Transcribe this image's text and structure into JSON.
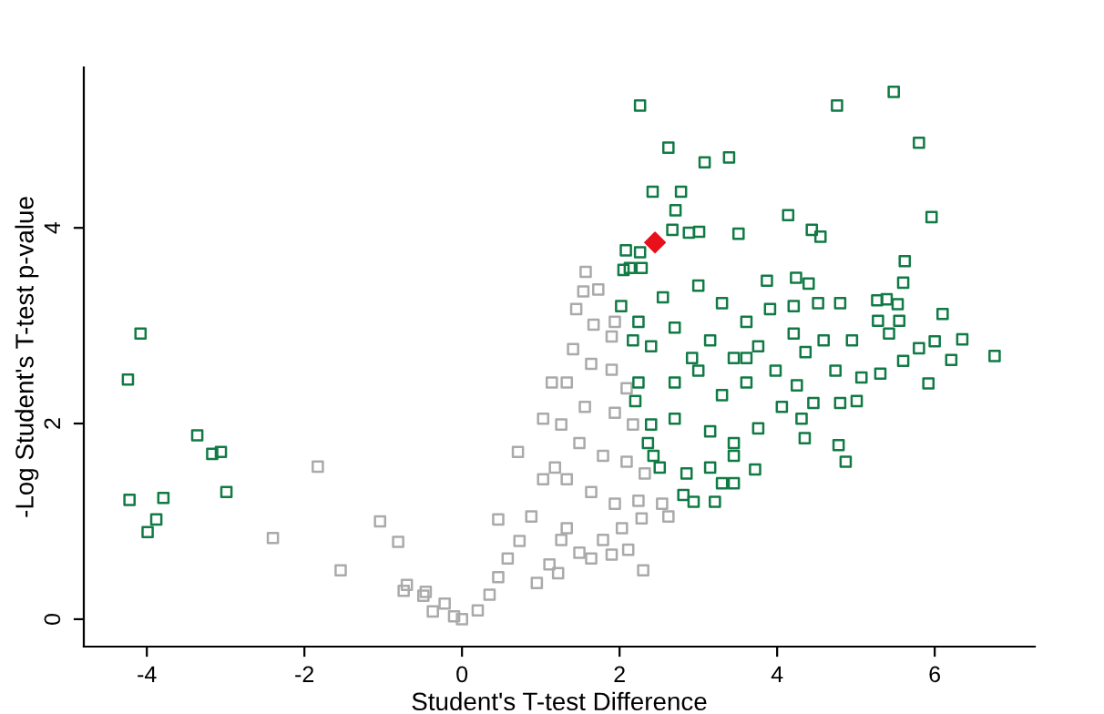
{
  "chart_data": {
    "type": "scatter",
    "xlabel": "Student's T-test Difference",
    "ylabel": "-Log Student's T-test p-value",
    "xlim": [
      -4.8,
      7.27
    ],
    "ylim": [
      -0.28,
      5.64
    ],
    "xticks": [
      -4,
      -2,
      0,
      2,
      4,
      6
    ],
    "yticks": [
      0,
      2,
      4
    ],
    "grid": false,
    "legend": false,
    "series": [
      {
        "color": "#aaaaaa",
        "marker": "square",
        "x": [
          -1.83,
          -2.4,
          -1.54,
          -1.04,
          -0.81,
          -0.7,
          -0.74,
          -0.46,
          -0.49,
          -0.37,
          -0.22,
          -0.1,
          0.0,
          0.2,
          0.35,
          0.46,
          0.58,
          0.73,
          0.71,
          0.46,
          0.88,
          1.03,
          1.03,
          1.14,
          0.95,
          1.11,
          1.57,
          1.54,
          1.73,
          1.45,
          1.67,
          1.9,
          1.94,
          1.41,
          1.64,
          1.9,
          2.09,
          1.33,
          1.56,
          1.94,
          2.17,
          1.26,
          1.49,
          1.79,
          2.09,
          2.32,
          1.33,
          1.64,
          1.94,
          2.24,
          2.54,
          2.62,
          2.28,
          2.03,
          1.79,
          2.11,
          2.3,
          1.9,
          1.64,
          1.49,
          1.26,
          1.22,
          1.33,
          1.18
        ],
        "values": [
          1.56,
          0.83,
          0.5,
          1.0,
          0.79,
          0.35,
          0.29,
          0.28,
          0.24,
          0.08,
          0.16,
          0.03,
          0.0,
          0.09,
          0.25,
          0.43,
          0.62,
          0.8,
          1.71,
          1.02,
          1.05,
          1.43,
          2.05,
          2.42,
          0.37,
          0.56,
          3.55,
          3.35,
          3.37,
          3.17,
          3.01,
          2.89,
          3.04,
          2.76,
          2.61,
          2.55,
          2.36,
          2.42,
          2.17,
          2.11,
          1.99,
          1.99,
          1.8,
          1.67,
          1.61,
          1.49,
          1.43,
          1.3,
          1.18,
          1.21,
          1.18,
          1.05,
          1.03,
          0.93,
          0.81,
          0.71,
          0.5,
          0.66,
          0.62,
          0.68,
          0.81,
          0.47,
          0.93,
          1.55
        ]
      },
      {
        "color": "#117a45",
        "marker": "square",
        "x": [
          2.26,
          4.76,
          5.48,
          5.8,
          2.62,
          3.08,
          3.39,
          2.42,
          2.78,
          2.71,
          4.14,
          5.96,
          2.67,
          2.88,
          3.01,
          3.51,
          4.44,
          4.55,
          2.08,
          2.26,
          5.62,
          2.05,
          2.13,
          2.28,
          5.6,
          3.87,
          4.24,
          4.4,
          2.02,
          2.24,
          2.55,
          3.0,
          3.3,
          3.61,
          3.91,
          4.21,
          4.52,
          4.8,
          5.27,
          5.39,
          5.53,
          6.1,
          5.28,
          5.55,
          6.35,
          6.0,
          6.76,
          6.21,
          5.92,
          5.6,
          5.31,
          5.07,
          4.95,
          5.01,
          4.8,
          4.87,
          4.78,
          4.35,
          4.31,
          4.46,
          4.25,
          3.98,
          3.76,
          3.45,
          3.15,
          2.7,
          2.4,
          2.17,
          2.24,
          2.2,
          2.7,
          3.0,
          3.3,
          3.61,
          4.06,
          2.4,
          2.7,
          3.15,
          3.45,
          3.76,
          2.51,
          2.85,
          3.15,
          3.45,
          3.72,
          2.81,
          2.94,
          3.21,
          3.3,
          3.45,
          2.36,
          2.43,
          4.36,
          4.59,
          4.74,
          5.42,
          5.8,
          4.21,
          3.61,
          2.92,
          -4.08,
          -4.24,
          -3.36,
          -3.17,
          -3.06,
          -2.99,
          -3.79,
          -4.22,
          -3.88,
          -3.99
        ],
        "values": [
          5.25,
          5.25,
          5.39,
          4.87,
          4.82,
          4.67,
          4.72,
          4.37,
          4.37,
          4.18,
          4.13,
          4.11,
          3.98,
          3.95,
          3.96,
          3.94,
          3.98,
          3.91,
          3.77,
          3.75,
          3.66,
          3.57,
          3.59,
          3.59,
          3.44,
          3.46,
          3.49,
          3.43,
          3.2,
          3.04,
          3.29,
          3.41,
          3.23,
          3.04,
          3.17,
          3.2,
          3.23,
          3.23,
          3.26,
          3.27,
          3.22,
          3.12,
          3.05,
          3.05,
          2.86,
          2.84,
          2.69,
          2.65,
          2.41,
          2.64,
          2.51,
          2.47,
          2.85,
          2.23,
          2.21,
          1.61,
          1.78,
          1.85,
          2.05,
          2.21,
          2.39,
          2.54,
          2.79,
          2.67,
          2.85,
          2.98,
          2.79,
          2.85,
          2.42,
          2.23,
          2.42,
          2.54,
          2.29,
          2.42,
          2.17,
          1.99,
          2.05,
          1.92,
          1.8,
          1.95,
          1.55,
          1.49,
          1.55,
          1.67,
          1.53,
          1.27,
          1.2,
          1.2,
          1.39,
          1.39,
          1.8,
          1.67,
          2.73,
          2.85,
          2.54,
          2.92,
          2.77,
          2.92,
          2.67,
          2.67,
          2.92,
          2.45,
          1.88,
          1.69,
          1.71,
          1.3,
          1.24,
          1.22,
          1.02,
          0.89
        ]
      },
      {
        "color": "#e8101a",
        "marker": "diamond",
        "x": [
          2.45
        ],
        "values": [
          3.85
        ]
      }
    ]
  }
}
